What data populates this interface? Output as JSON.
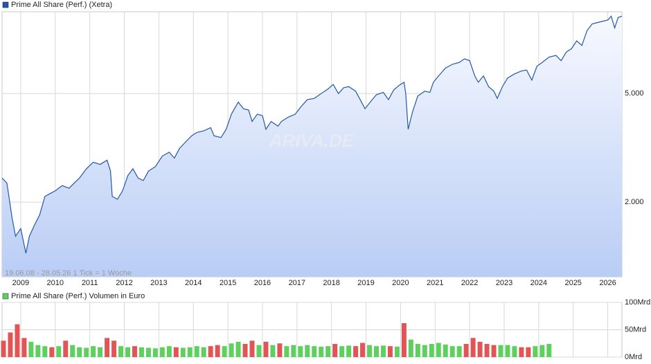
{
  "chart_data": [
    {
      "type": "line",
      "log_scale": true,
      "grid": true,
      "subtitle": "19.06.08 - 28.05.26   1 Tick = 1 Woche",
      "watermark": "ARIVA.DE",
      "xlim": [
        2008.46,
        2026.41
      ],
      "xticks": [
        2009,
        2010,
        2011,
        2012,
        2013,
        2014,
        2015,
        2016,
        2017,
        2018,
        2019,
        2020,
        2021,
        2022,
        2023,
        2024,
        2025,
        2026
      ],
      "ylim": [
        1065,
        9970
      ],
      "yticks": [
        {
          "value": 5000,
          "label": "5.000"
        },
        {
          "value": 2000,
          "label": "2.000"
        }
      ],
      "x": [
        2008.46,
        2008.6,
        2008.75,
        2008.85,
        2009.0,
        2009.15,
        2009.25,
        2009.4,
        2009.55,
        2009.7,
        2009.85,
        2010.0,
        2010.2,
        2010.4,
        2010.55,
        2010.7,
        2010.9,
        2011.1,
        2011.3,
        2011.5,
        2011.6,
        2011.65,
        2011.8,
        2011.95,
        2012.1,
        2012.25,
        2012.4,
        2012.55,
        2012.7,
        2012.9,
        2013.1,
        2013.3,
        2013.45,
        2013.6,
        2013.8,
        2013.95,
        2014.1,
        2014.3,
        2014.5,
        2014.6,
        2014.8,
        2014.95,
        2015.1,
        2015.3,
        2015.45,
        2015.6,
        2015.7,
        2015.85,
        2016.0,
        2016.1,
        2016.25,
        2016.45,
        2016.55,
        2016.75,
        2016.95,
        2017.1,
        2017.3,
        2017.5,
        2017.7,
        2017.9,
        2018.05,
        2018.2,
        2018.35,
        2018.5,
        2018.7,
        2018.85,
        2018.97,
        2019.15,
        2019.3,
        2019.5,
        2019.65,
        2019.8,
        2019.95,
        2020.1,
        2020.15,
        2020.22,
        2020.35,
        2020.5,
        2020.7,
        2020.85,
        2020.95,
        2021.1,
        2021.3,
        2021.5,
        2021.7,
        2021.85,
        2022.0,
        2022.15,
        2022.25,
        2022.4,
        2022.55,
        2022.7,
        2022.8,
        2022.95,
        2023.1,
        2023.3,
        2023.5,
        2023.65,
        2023.8,
        2023.95,
        2024.1,
        2024.3,
        2024.5,
        2024.65,
        2024.8,
        2024.95,
        2025.1,
        2025.25,
        2025.4,
        2025.55,
        2025.7,
        2025.85,
        2026.0,
        2026.1,
        2026.2,
        2026.3,
        2026.41
      ],
      "series": [
        {
          "name": "Prime All Share (Perf.) (Xetra)",
          "color": "#2257aa",
          "values": [
            2450,
            2350,
            1750,
            1500,
            1600,
            1300,
            1500,
            1650,
            1800,
            2100,
            2150,
            2200,
            2300,
            2250,
            2350,
            2450,
            2650,
            2800,
            2750,
            2850,
            2600,
            2100,
            2050,
            2200,
            2500,
            2650,
            2450,
            2400,
            2600,
            2700,
            2950,
            3050,
            2900,
            3150,
            3350,
            3500,
            3600,
            3650,
            3750,
            3500,
            3450,
            3700,
            4200,
            4650,
            4400,
            4350,
            3950,
            4200,
            4150,
            3700,
            3950,
            3800,
            3950,
            4100,
            4200,
            4450,
            4750,
            4800,
            5000,
            5200,
            5400,
            5000,
            5250,
            5300,
            5100,
            4700,
            4400,
            4700,
            4950,
            5050,
            4750,
            5150,
            5350,
            5500,
            5000,
            3700,
            4300,
            4900,
            5100,
            5050,
            5500,
            5800,
            6200,
            6400,
            6500,
            6700,
            6600,
            5800,
            5500,
            5800,
            5300,
            5100,
            4800,
            5300,
            5700,
            5900,
            6050,
            6100,
            5600,
            6300,
            6500,
            6800,
            6900,
            6600,
            7100,
            7300,
            7800,
            7500,
            8500,
            9000,
            9100,
            9200,
            9300,
            9600,
            8700,
            9500,
            9600
          ]
        }
      ]
    },
    {
      "type": "bar",
      "grid": true,
      "xlim": [
        2008.46,
        2026.41
      ],
      "xticks": [
        2009,
        2010,
        2011,
        2012,
        2013,
        2014,
        2015,
        2016,
        2017,
        2018,
        2019,
        2020,
        2021,
        2022,
        2023,
        2024,
        2025,
        2026
      ],
      "ylim": [
        0,
        100
      ],
      "yticks": [
        {
          "value": 100,
          "label": "100Mrd"
        },
        {
          "value": 50,
          "label": "50Mrd"
        },
        {
          "value": 0,
          "label": "0Mrd"
        }
      ],
      "x": [
        2008.5,
        2008.7,
        2008.9,
        2009.1,
        2009.3,
        2009.5,
        2009.7,
        2009.9,
        2010.1,
        2010.3,
        2010.5,
        2010.7,
        2010.9,
        2011.1,
        2011.3,
        2011.5,
        2011.7,
        2011.9,
        2012.1,
        2012.3,
        2012.5,
        2012.7,
        2012.9,
        2013.1,
        2013.3,
        2013.5,
        2013.7,
        2013.9,
        2014.1,
        2014.3,
        2014.5,
        2014.7,
        2014.9,
        2015.1,
        2015.3,
        2015.5,
        2015.7,
        2015.9,
        2016.1,
        2016.3,
        2016.5,
        2016.7,
        2016.9,
        2017.1,
        2017.3,
        2017.5,
        2017.7,
        2017.9,
        2018.1,
        2018.3,
        2018.5,
        2018.7,
        2018.9,
        2019.1,
        2019.3,
        2019.5,
        2019.7,
        2019.9,
        2020.1,
        2020.3,
        2020.5,
        2020.7,
        2020.9,
        2021.1,
        2021.3,
        2021.5,
        2021.7,
        2021.9,
        2022.1,
        2022.3,
        2022.5,
        2022.7,
        2022.9,
        2023.1,
        2023.3,
        2023.5,
        2023.7,
        2023.9,
        2024.1,
        2024.3
      ],
      "series": [
        {
          "name": "Prime All Share (Perf.) Volumen in Euro",
          "color": "#5fcf5f",
          "values": [
            30,
            45,
            60,
            35,
            28,
            22,
            20,
            18,
            20,
            30,
            22,
            18,
            17,
            20,
            18,
            35,
            30,
            20,
            18,
            20,
            18,
            17,
            16,
            18,
            20,
            18,
            17,
            18,
            20,
            18,
            20,
            22,
            20,
            25,
            28,
            24,
            30,
            22,
            28,
            22,
            25,
            20,
            22,
            20,
            22,
            20,
            19,
            20,
            24,
            20,
            21,
            20,
            26,
            22,
            20,
            21,
            20,
            19,
            62,
            32,
            24,
            22,
            24,
            26,
            23,
            20,
            20,
            24,
            35,
            28,
            24,
            22,
            22,
            22,
            20,
            18,
            18,
            20,
            22,
            24
          ],
          "colors": [
            "#e05555",
            "#e05555",
            "#e05555",
            "#e05555",
            "#5fcf5f",
            "#5fcf5f",
            "#5fcf5f",
            "#e05555",
            "#5fcf5f",
            "#e05555",
            "#5fcf5f",
            "#5fcf5f",
            "#5fcf5f",
            "#5fcf5f",
            "#5fcf5f",
            "#e05555",
            "#e05555",
            "#5fcf5f",
            "#5fcf5f",
            "#e05555",
            "#5fcf5f",
            "#5fcf5f",
            "#5fcf5f",
            "#5fcf5f",
            "#5fcf5f",
            "#e05555",
            "#5fcf5f",
            "#5fcf5f",
            "#5fcf5f",
            "#5fcf5f",
            "#e05555",
            "#e05555",
            "#5fcf5f",
            "#5fcf5f",
            "#5fcf5f",
            "#e05555",
            "#e05555",
            "#5fcf5f",
            "#e05555",
            "#5fcf5f",
            "#e05555",
            "#5fcf5f",
            "#5fcf5f",
            "#5fcf5f",
            "#5fcf5f",
            "#5fcf5f",
            "#5fcf5f",
            "#5fcf5f",
            "#e05555",
            "#5fcf5f",
            "#5fcf5f",
            "#e05555",
            "#e05555",
            "#5fcf5f",
            "#5fcf5f",
            "#5fcf5f",
            "#e05555",
            "#5fcf5f",
            "#e05555",
            "#5fcf5f",
            "#5fcf5f",
            "#5fcf5f",
            "#5fcf5f",
            "#5fcf5f",
            "#5fcf5f",
            "#5fcf5f",
            "#5fcf5f",
            "#e05555",
            "#e05555",
            "#e05555",
            "#e05555",
            "#e05555",
            "#5fcf5f",
            "#5fcf5f",
            "#5fcf5f",
            "#e05555",
            "#e05555",
            "#5fcf5f",
            "#5fcf5f",
            "#5fcf5f"
          ]
        }
      ]
    }
  ]
}
